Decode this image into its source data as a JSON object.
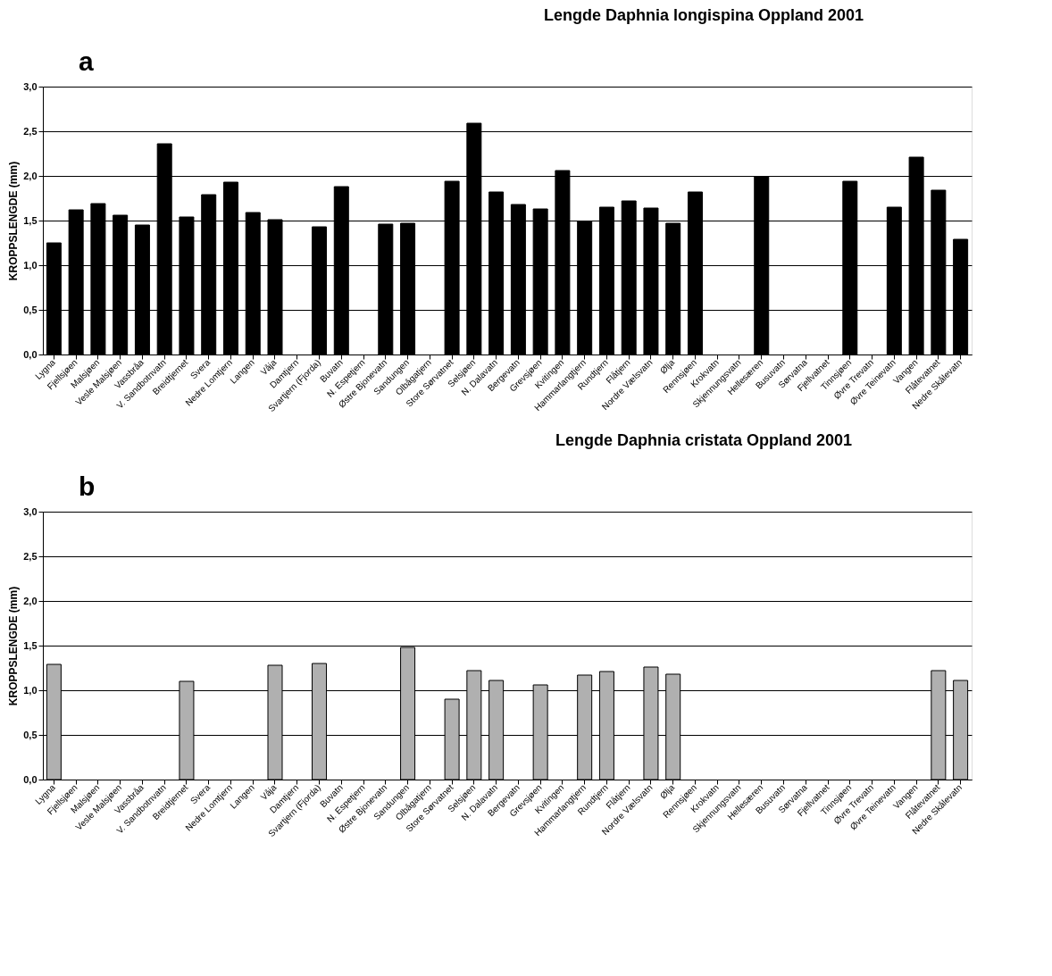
{
  "chart_data": [
    {
      "type": "bar",
      "title": "Lengde Daphnia longispina Oppland 2001",
      "annotations": [
        "a"
      ],
      "ylabel": "KROPPSLENGDE (mm)",
      "categories": [
        "Lygna",
        "Fjellsjøen",
        "Malsjøen",
        "Vesle Malsjøen",
        "Vassbråa",
        "V. Sandbotnvatn",
        "Breidtjernet",
        "Svera",
        "Nedre Lomtjern",
        "Langen",
        "Våja",
        "Damtjern",
        "Svartjern (Fjorda)",
        "Buvatn",
        "N. Espetjern",
        "Østre Bjonevatn",
        "Sandungen",
        "Olbågatjern",
        "Store Sørvatnet",
        "Selsjøen",
        "N. Dalavatn",
        "Bergevatn",
        "Grevsjøen",
        "Kvitingen",
        "Hammarlangtjern",
        "Rundtjern",
        "Flåtjern",
        "Nordre Vælsvatn",
        "Ølja",
        "Rennsjøen",
        "Krokvatn",
        "Skjennungsvatn",
        "Hellesæren",
        "Busuvatn",
        "Sørvatna",
        "Fjellvatnet",
        "Tinnsjøen",
        "Øvre Trevatn",
        "Øvre Teinevatn",
        "Vangen",
        "Flåtevatnet",
        "Nedre Skålevatn"
      ],
      "values": [
        1.25,
        1.62,
        1.69,
        1.56,
        1.45,
        2.36,
        1.54,
        1.79,
        1.93,
        1.59,
        1.51,
        null,
        1.43,
        1.88,
        null,
        1.46,
        1.47,
        null,
        1.94,
        2.59,
        1.82,
        1.68,
        1.63,
        2.06,
        1.49,
        1.65,
        1.72,
        1.64,
        1.47,
        1.82,
        null,
        null,
        1.99,
        null,
        null,
        null,
        1.94,
        null,
        1.65,
        2.21,
        1.84,
        1.29
      ],
      "color": "#000000",
      "ylim": [
        0,
        3
      ],
      "yticks": [
        {
          "value": 0,
          "label": "0,0"
        },
        {
          "value": 0.5,
          "label": "0,5"
        },
        {
          "value": 1,
          "label": "1,0"
        },
        {
          "value": 1.5,
          "label": "1,5"
        },
        {
          "value": 2,
          "label": "2,0"
        },
        {
          "value": 2.5,
          "label": "2,5"
        },
        {
          "value": 3,
          "label": "3,0"
        }
      ],
      "grid": "y"
    },
    {
      "type": "bar",
      "title": "Lengde Daphnia cristata Oppland 2001",
      "annotations": [
        "b"
      ],
      "ylabel": "KROPPSLENGDE (mm)",
      "categories": [
        "Lygna",
        "Fjellsjøen",
        "Malsjøen",
        "Vesle Malsjøen",
        "Vassbråa",
        "V. Sandbotnvatn",
        "Breidtjernet",
        "Svera",
        "Nedre Lomtjern",
        "Langen",
        "Våja",
        "Damtjern",
        "Svartjern (Fjorda)",
        "Buvatn",
        "N. Espetjern",
        "Østre Bjonevatn",
        "Sandungen",
        "Olbågatjern",
        "Store Sørvatnet",
        "Selsjøen",
        "N. Dalavatn",
        "Bergevatn",
        "Grevsjøen",
        "Kvitingen",
        "Hammarlangtjern",
        "Rundtjern",
        "Flåtjern",
        "Nordre Vælsvatn",
        "Ølja",
        "Rennsjøen",
        "Krokvatn",
        "Skjennungsvatn",
        "Hellesæren",
        "Busuvatn",
        "Sørvatna",
        "Fjellvatnet",
        "Tinnsjøen",
        "Øvre Trevatn",
        "Øvre Teinevatn",
        "Vangen",
        "Flåtevatnet",
        "Nedre Skålevatn"
      ],
      "values": [
        1.29,
        null,
        null,
        null,
        null,
        null,
        1.1,
        null,
        null,
        null,
        1.28,
        null,
        1.3,
        null,
        null,
        null,
        1.48,
        null,
        0.9,
        1.22,
        1.11,
        null,
        1.06,
        null,
        1.17,
        1.21,
        null,
        1.26,
        1.18,
        null,
        null,
        null,
        null,
        null,
        null,
        null,
        null,
        null,
        null,
        null,
        1.22,
        1.11
      ],
      "color": "#b0b0b0",
      "ylim": [
        0,
        3
      ],
      "yticks": [
        {
          "value": 0,
          "label": "0,0"
        },
        {
          "value": 0.5,
          "label": "0,5"
        },
        {
          "value": 1,
          "label": "1,0"
        },
        {
          "value": 1.5,
          "label": "1,5"
        },
        {
          "value": 2,
          "label": "2,0"
        },
        {
          "value": 2.5,
          "label": "2,5"
        },
        {
          "value": 3,
          "label": "3,0"
        }
      ],
      "grid": "y"
    }
  ]
}
